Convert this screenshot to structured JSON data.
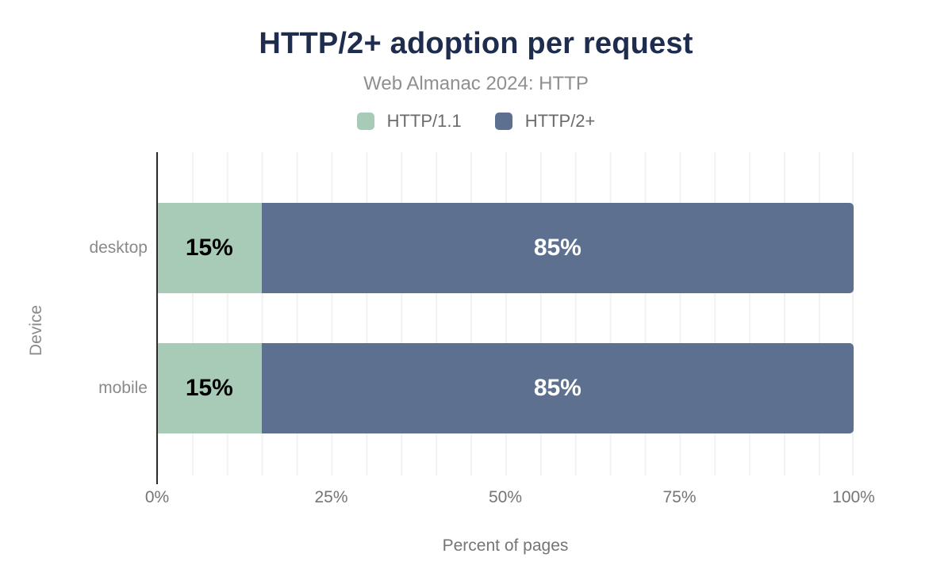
{
  "figure": {
    "title": "HTTP/2+ adoption per request",
    "subtitle": "Web Almanac 2024: HTTP"
  },
  "chart_data": {
    "type": "bar",
    "variant": "horizontal-stacked",
    "title": "HTTP/2+ adoption per request",
    "subtitle": "Web Almanac 2024: HTTP",
    "categories": [
      "desktop",
      "mobile"
    ],
    "series": [
      {
        "name": "HTTP/1.1",
        "color": "#a8cbb8",
        "label_color": "#000000",
        "values": [
          15,
          15
        ]
      },
      {
        "name": "HTTP/2+",
        "color": "#5e7090",
        "label_color": "#ffffff",
        "values": [
          85,
          85
        ]
      }
    ],
    "value_label_format": "percent",
    "xlabel": "Percent of pages",
    "ylabel": "Device",
    "xlim": [
      0,
      100
    ],
    "xticks": [
      {
        "value": 0,
        "label": "0%"
      },
      {
        "value": 25,
        "label": "25%"
      },
      {
        "value": 50,
        "label": "50%"
      },
      {
        "value": 75,
        "label": "75%"
      },
      {
        "value": 100,
        "label": "100%"
      }
    ],
    "gridlines": {
      "axis": "x",
      "step_percent": 5,
      "color": "#f2f2f2"
    },
    "legend_position": "top"
  },
  "colors": {
    "title_text": "#1e2c4e",
    "subtitle_text": "#8f8f8f",
    "legend_text": "#6b6b6b",
    "category_text": "#8a8a8a",
    "axis_text": "#757575",
    "axis_line": "#2b2b2b"
  }
}
